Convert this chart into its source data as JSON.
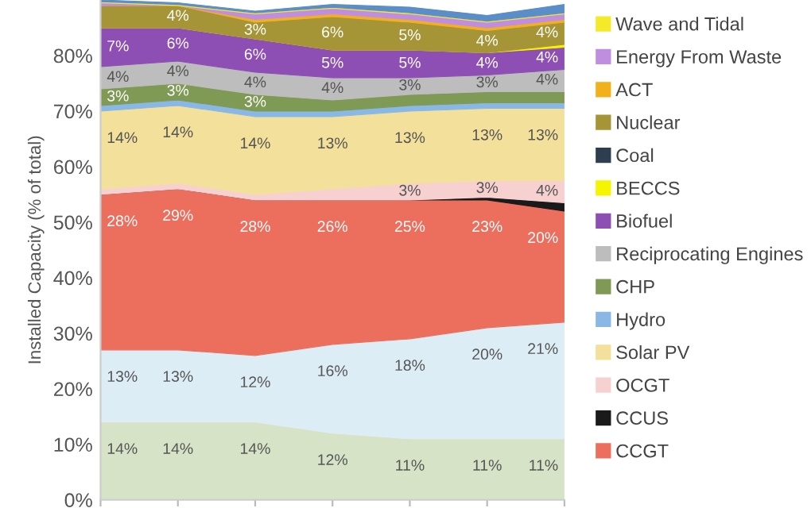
{
  "chart_data": {
    "type": "area",
    "stacked": true,
    "ylabel": "Installed Capacity (% of total)",
    "categories": [
      null,
      null,
      null,
      null,
      null,
      null,
      null
    ],
    "ylim": [
      0,
      90
    ],
    "yticks": [
      {
        "value": 0,
        "label": "0%"
      },
      {
        "value": 10,
        "label": "10%"
      },
      {
        "value": 20,
        "label": "20%"
      },
      {
        "value": 30,
        "label": "30%"
      },
      {
        "value": 40,
        "label": "40%"
      },
      {
        "value": 50,
        "label": "50%"
      },
      {
        "value": 60,
        "label": "60%"
      },
      {
        "value": 70,
        "label": "70%"
      },
      {
        "value": 80,
        "label": "80%"
      }
    ],
    "tick_labels": "y",
    "grid": false,
    "legend": "right",
    "series": [
      {
        "color": "#d6e3c6",
        "values": [
          14,
          14,
          14,
          12,
          11,
          11,
          11
        ],
        "value_labels": [
          "14%",
          "14%",
          "14%",
          "12%",
          "11%",
          "11%",
          "11%"
        ]
      },
      {
        "color": "#ddedf5",
        "values": [
          13,
          13,
          12,
          16,
          18,
          20,
          21
        ],
        "value_labels": [
          "13%",
          "13%",
          "12%",
          "16%",
          "18%",
          "20%",
          "21%"
        ]
      },
      {
        "name": "CCGT",
        "color": "#ec6f5e",
        "values": [
          28,
          29,
          28,
          26,
          25,
          23,
          20
        ],
        "value_labels": [
          "28%",
          "29%",
          "28%",
          "26%",
          "25%",
          "23%",
          "20%"
        ]
      },
      {
        "name": "CCUS",
        "color": "#1a1a1a",
        "values": [
          0,
          0,
          0,
          0,
          0,
          0.5,
          1.5
        ]
      },
      {
        "name": "OCGT",
        "color": "#f7d0d0",
        "values": [
          1,
          1,
          1,
          2,
          3,
          3,
          4
        ],
        "value_labels": [
          null,
          null,
          null,
          null,
          "3%",
          "3%",
          "4%"
        ]
      },
      {
        "name": "Solar PV",
        "color": "#f3e19b",
        "values": [
          14,
          14,
          14,
          13,
          13,
          13,
          13
        ],
        "value_labels": [
          "14%",
          "14%",
          "14%",
          "13%",
          "13%",
          "13%",
          "13%"
        ]
      },
      {
        "name": "Hydro",
        "color": "#8ab8e6",
        "values": [
          1,
          1,
          1,
          1,
          1,
          1,
          1
        ]
      },
      {
        "name": "CHP",
        "color": "#7f9a55",
        "values": [
          3,
          3,
          3,
          2,
          2,
          2,
          2
        ],
        "value_labels": [
          "3%",
          "3%",
          "3%",
          null,
          null,
          null,
          null
        ]
      },
      {
        "name": "Reciprocating Engines",
        "color": "#bdbdbd",
        "values": [
          4,
          4,
          4,
          4,
          3,
          3,
          4
        ],
        "value_labels": [
          "4%",
          "4%",
          "4%",
          "4%",
          "3%",
          "3%",
          "4%"
        ]
      },
      {
        "name": "Biofuel",
        "color": "#8e4fb5",
        "values": [
          7,
          6,
          6,
          5,
          5,
          4,
          4
        ],
        "value_labels": [
          "7%",
          "6%",
          "6%",
          "5%",
          "5%",
          "4%",
          "4%"
        ]
      },
      {
        "name": "BECCS",
        "color": "#f5f500",
        "values": [
          0,
          0,
          0,
          0,
          0,
          0,
          0.5
        ]
      },
      {
        "name": "Coal",
        "color": "#2d3e50",
        "values": [
          null,
          null,
          null,
          null,
          null,
          null,
          null
        ]
      },
      {
        "name": "Nuclear",
        "color": "#a69536",
        "values": [
          4,
          4,
          3,
          6,
          5,
          4,
          4
        ],
        "value_labels": [
          null,
          "4%",
          "3%",
          "6%",
          "5%",
          "4%",
          "4%"
        ]
      },
      {
        "name": "ACT",
        "color": "#f2b01e",
        "values": [
          0,
          0,
          0.5,
          0.5,
          0.5,
          0.5,
          0.5
        ]
      },
      {
        "name": "Energy From Waste",
        "color": "#c08ee0",
        "values": [
          0.5,
          0,
          1,
          1,
          1,
          1,
          1
        ]
      },
      {
        "name": "Wave and Tidal",
        "color": "#f4ea2a",
        "values": [
          0.2,
          0.2,
          0.2,
          0.2,
          0.2,
          0.2,
          0.2
        ]
      },
      {
        "color": "#5b8ec8",
        "values": [
          0.3,
          0.3,
          0.3,
          0.5,
          1,
          1,
          1.5
        ]
      }
    ]
  }
}
